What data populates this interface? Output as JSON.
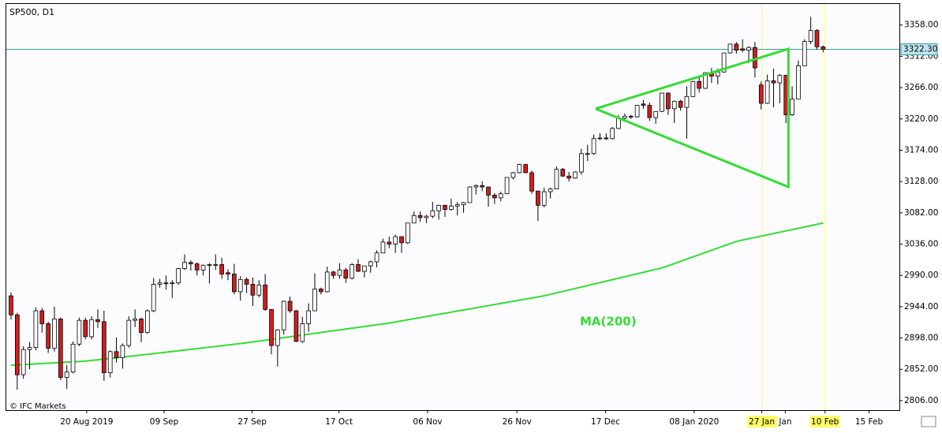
{
  "chart_data": {
    "type": "candlestick",
    "title": "SP500, D1",
    "credit": "© IFC Markets",
    "xlim": [
      -0.76,
      143.3
    ],
    "ylim": [
      2792,
      3389
    ],
    "yticks": [
      {
        "value": 2806,
        "label": "2806.00"
      },
      {
        "value": 2852,
        "label": "2852.00"
      },
      {
        "value": 2898,
        "label": "2898.00"
      },
      {
        "value": 2944,
        "label": "2944.00"
      },
      {
        "value": 2990,
        "label": "2990.00"
      },
      {
        "value": 3036,
        "label": "3036.00"
      },
      {
        "value": 3082,
        "label": "3082.00"
      },
      {
        "value": 3128,
        "label": "3128.00"
      },
      {
        "value": 3174,
        "label": "3174.00"
      },
      {
        "value": 3220,
        "label": "3220.00"
      },
      {
        "value": 3266,
        "label": "3266.00"
      },
      {
        "value": 3312,
        "label": "3312.00"
      },
      {
        "value": 3358,
        "label": "3358.00"
      }
    ],
    "xticks": [
      {
        "value": 12.2,
        "label": "20 Aug 2019"
      },
      {
        "value": 24.7,
        "label": "09 Sep"
      },
      {
        "value": 38.9,
        "label": "27 Sep"
      },
      {
        "value": 52.9,
        "label": "17 Oct"
      },
      {
        "value": 67.2,
        "label": "06 Nov"
      },
      {
        "value": 81.6,
        "label": "26 Nov"
      },
      {
        "value": 95.9,
        "label": "17 Dec"
      },
      {
        "value": 110.2,
        "label": "08 Jan 2020"
      },
      {
        "value": 121.1,
        "label": "27 Jan"
      },
      {
        "value": 124.9,
        "label": "Jan"
      },
      {
        "value": 131.3,
        "label": "10 Feb"
      },
      {
        "value": 138.4,
        "label": "15 Feb"
      }
    ],
    "highlighted_xticks": [
      8,
      10
    ],
    "highlight_color": "#ffff66",
    "up_color": "#ffffff",
    "down_color": "#cc1f1f",
    "open": [
      2960,
      2932,
      2844,
      2881,
      2884,
      2938,
      2919,
      2883,
      2926,
      2840,
      2848,
      2889,
      2924,
      2900,
      2925,
      2922,
      2847,
      2878,
      2869,
      2887,
      2924,
      2926,
      2906,
      2938,
      2977,
      2979,
      2978,
      2979,
      3000,
      3009,
      3007,
      2998,
      3005,
      3006,
      3006,
      2994,
      2992,
      2966,
      2984,
      2977,
      2961,
      2976,
      2940,
      2887,
      2910,
      2952,
      2938,
      2893,
      2919,
      2938,
      2970,
      2966,
      2995,
      2990,
      2998,
      2986,
      3006,
      2996,
      3004,
      3010,
      3023,
      3039,
      3036,
      3047,
      3038,
      3067,
      3078,
      3075,
      3077,
      3085,
      3093,
      3087,
      3092,
      3094,
      3097,
      3120,
      3122,
      3120,
      3108,
      3104,
      3110,
      3134,
      3141,
      3153,
      3141,
      3114,
      3093,
      3113,
      3117,
      3146,
      3136,
      3133,
      3142,
      3169,
      3169,
      3191,
      3192,
      3191,
      3206,
      3221,
      3224,
      3223,
      3242,
      3240,
      3222,
      3231,
      3258,
      3235,
      3246,
      3237,
      3253,
      3275,
      3265,
      3288,
      3283,
      3289,
      3317,
      3330,
      3323,
      3321,
      3325,
      3270,
      3243,
      3276,
      3273,
      3284,
      3226,
      3249,
      3298,
      3334,
      3350,
      3326
    ],
    "high": [
      2965,
      2935,
      2886,
      2892,
      2943,
      2942,
      2922,
      2944,
      2928,
      2858,
      2893,
      2928,
      2928,
      2930,
      2940,
      2938,
      2880,
      2899,
      2890,
      2930,
      2940,
      2928,
      2940,
      2986,
      2985,
      2990,
      2983,
      3001,
      3021,
      3012,
      3009,
      3006,
      3008,
      3021,
      3016,
      2999,
      3007,
      2989,
      2987,
      2987,
      2983,
      2992,
      2940,
      2911,
      2953,
      2959,
      2939,
      2929,
      2949,
      2993,
      2972,
      3003,
      2997,
      3008,
      3001,
      3008,
      3014,
      3004,
      3012,
      3027,
      3044,
      3047,
      3050,
      3047,
      3067,
      3084,
      3084,
      3079,
      3098,
      3094,
      3094,
      3103,
      3098,
      3098,
      3121,
      3124,
      3128,
      3119,
      3111,
      3113,
      3134,
      3142,
      3154,
      3154,
      3144,
      3114,
      3119,
      3119,
      3150,
      3148,
      3142,
      3143,
      3176,
      3182,
      3197,
      3199,
      3199,
      3208,
      3226,
      3228,
      3226,
      3240,
      3248,
      3244,
      3231,
      3258,
      3259,
      3247,
      3248,
      3268,
      3276,
      3283,
      3288,
      3295,
      3294,
      3317,
      3330,
      3333,
      3337,
      3327,
      3333,
      3275,
      3285,
      3294,
      3286,
      3285,
      3268,
      3306,
      3337,
      3370,
      3352,
      3328
    ],
    "low": [
      2925,
      2822,
      2838,
      2852,
      2880,
      2906,
      2876,
      2878,
      2836,
      2823,
      2846,
      2886,
      2896,
      2896,
      2913,
      2835,
      2840,
      2862,
      2853,
      2884,
      2914,
      2892,
      2904,
      2936,
      2972,
      2969,
      2957,
      2976,
      2998,
      2997,
      2990,
      2990,
      2978,
      2998,
      2985,
      2983,
      2962,
      2953,
      2964,
      2945,
      2958,
      2938,
      2874,
      2856,
      2903,
      2935,
      2892,
      2891,
      2907,
      2938,
      2962,
      2965,
      2985,
      2985,
      2979,
      2984,
      2995,
      2987,
      2994,
      3002,
      3023,
      3030,
      3023,
      3023,
      3036,
      3067,
      3069,
      3067,
      3074,
      3072,
      3076,
      3085,
      3078,
      3082,
      3097,
      3109,
      3114,
      3091,
      3095,
      3099,
      3110,
      3131,
      3140,
      3140,
      3110,
      3070,
      3090,
      3103,
      3117,
      3135,
      3128,
      3132,
      3138,
      3158,
      3167,
      3189,
      3189,
      3190,
      3205,
      3219,
      3220,
      3222,
      3235,
      3217,
      3213,
      3230,
      3226,
      3214,
      3232,
      3191,
      3252,
      3259,
      3264,
      3273,
      3271,
      3288,
      3316,
      3316,
      3318,
      3302,
      3281,
      3234,
      3242,
      3237,
      3243,
      3214,
      3224,
      3249,
      3298,
      3330,
      3322,
      3318
    ],
    "close": [
      2932,
      2844,
      2881,
      2884,
      2938,
      2919,
      2883,
      2926,
      2840,
      2848,
      2889,
      2924,
      2900,
      2925,
      2922,
      2847,
      2878,
      2869,
      2887,
      2924,
      2926,
      2906,
      2938,
      2977,
      2979,
      2978,
      2979,
      3000,
      3009,
      3007,
      2998,
      3005,
      3006,
      3006,
      2992,
      2992,
      2966,
      2984,
      2977,
      2961,
      2976,
      2940,
      2887,
      2910,
      2952,
      2938,
      2893,
      2919,
      2938,
      2970,
      2966,
      2995,
      2990,
      2998,
      2986,
      3006,
      2996,
      3004,
      3010,
      3023,
      3039,
      3036,
      3047,
      3038,
      3067,
      3078,
      3075,
      3077,
      3085,
      3093,
      3087,
      3092,
      3094,
      3097,
      3120,
      3122,
      3120,
      3108,
      3104,
      3110,
      3134,
      3141,
      3153,
      3141,
      3114,
      3093,
      3113,
      3117,
      3146,
      3136,
      3133,
      3142,
      3169,
      3169,
      3191,
      3192,
      3191,
      3206,
      3221,
      3224,
      3223,
      3240,
      3240,
      3222,
      3231,
      3258,
      3235,
      3246,
      3237,
      3253,
      3275,
      3265,
      3288,
      3283,
      3289,
      3317,
      3330,
      3321,
      3321,
      3325,
      3295,
      3243,
      3276,
      3273,
      3284,
      3226,
      3249,
      3298,
      3334,
      3350,
      3326,
      3322.3
    ],
    "current_price": {
      "value": 3322.3,
      "label": "3322.30"
    },
    "current_price_color": "#3a9e9e",
    "ma": {
      "name": "MA(200)",
      "color": "#33dd33",
      "x": [
        0,
        12,
        24,
        38,
        61,
        86,
        105,
        117,
        131
      ],
      "values": [
        2858,
        2864,
        2876,
        2891,
        2920,
        2960,
        3001,
        3040,
        3067
      ]
    },
    "triangle": {
      "color": "#33dd33",
      "x": [
        94.3,
        125.4,
        125.4,
        94.3
      ],
      "values": [
        3235,
        3323,
        3120,
        3235
      ]
    }
  }
}
